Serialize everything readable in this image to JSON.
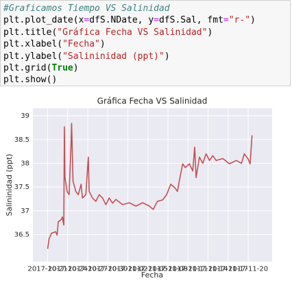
{
  "code": {
    "lines": [
      [
        "#Graficamos Tiempo VS Salinidad"
      ],
      [
        "plt.plot_date(x",
        "=",
        "dfS.NDate, y",
        "=",
        "dfS.Sal, fmt",
        "=",
        "\"r-\"",
        ")"
      ],
      [
        "plt.title(",
        "\"Gráfica Fecha VS Salinidad\"",
        ")"
      ],
      [
        "plt.xlabel(",
        "\"Fecha\"",
        ")"
      ],
      [
        "plt.ylabel(",
        "\"Salininidad (ppt)\"",
        ")"
      ],
      [
        "plt.grid(",
        "True",
        ")"
      ],
      [
        "plt.show()"
      ]
    ]
  },
  "chart_data": {
    "type": "line",
    "title": "Gráfica Fecha VS Salinidad",
    "x_label": "Fecha",
    "y_label": "Salininidad (ppt)",
    "grid": true,
    "xlim": [
      "2017-10-18T19:00",
      "2017-11-23T14:00"
    ],
    "ylim": [
      35.93,
      39.16
    ],
    "xticks": [
      "2017-10-21",
      "2017-10-24",
      "2017-10-27",
      "2017-10-30",
      "2017-11-02",
      "2017-11-05",
      "2017-11-08",
      "2017-11-11",
      "2017-11-14",
      "2017-11-17",
      "2017-11-20"
    ],
    "yticks": [
      36.5,
      37.0,
      37.5,
      38.0,
      38.5,
      39.0
    ],
    "series": [
      {
        "name": "Sal",
        "color": "#c44e52",
        "x": [
          "2017-10-21T00:00",
          "2017-10-21T05:00",
          "2017-10-21T14:00",
          "2017-10-22T05:00",
          "2017-10-22T10:00",
          "2017-10-22T14:00",
          "2017-10-23T00:00",
          "2017-10-23T05:00",
          "2017-10-23T10:00",
          "2017-10-23T12:00",
          "2017-10-23T14:00",
          "2017-10-23T22:00",
          "2017-10-24T05:00",
          "2017-10-24T12:00",
          "2017-10-24T14:00",
          "2017-10-24T19:00",
          "2017-10-25T05:00",
          "2017-10-25T14:00",
          "2017-10-26T00:00",
          "2017-10-26T05:00",
          "2017-10-26T17:00",
          "2017-10-27T02:00",
          "2017-10-27T05:00",
          "2017-10-27T17:00",
          "2017-10-28T05:00",
          "2017-10-28T17:00",
          "2017-10-29T05:00",
          "2017-10-29T17:00",
          "2017-10-30T05:00",
          "2017-10-30T17:00",
          "2017-10-31T05:00",
          "2017-11-01T05:00",
          "2017-11-02T05:00",
          "2017-11-03T05:00",
          "2017-11-04T05:00",
          "2017-11-05T05:00",
          "2017-11-05T19:00",
          "2017-11-06T10:00",
          "2017-11-07T05:00",
          "2017-11-07T19:00",
          "2017-11-08T10:00",
          "2017-11-09T00:00",
          "2017-11-09T10:00",
          "2017-11-09T19:00",
          "2017-11-10T05:00",
          "2017-11-10T14:00",
          "2017-11-11T05:00",
          "2017-11-11T17:00",
          "2017-11-12T00:00",
          "2017-11-12T05:00",
          "2017-11-12T17:00",
          "2017-11-13T05:00",
          "2017-11-13T17:00",
          "2017-11-14T05:00",
          "2017-11-14T17:00",
          "2017-11-15T05:00",
          "2017-11-16T05:00",
          "2017-11-17T05:00",
          "2017-11-18T05:00",
          "2017-11-19T00:00",
          "2017-11-19T10:00",
          "2017-11-20T00:00",
          "2017-11-20T07:00",
          "2017-11-20T14:00"
        ],
        "values": [
          36.2,
          36.41,
          36.53,
          36.56,
          36.49,
          36.77,
          36.81,
          36.87,
          36.7,
          38.77,
          37.7,
          37.41,
          37.34,
          38.41,
          38.84,
          37.63,
          37.41,
          37.34,
          37.56,
          37.27,
          37.34,
          38.13,
          37.41,
          37.27,
          37.2,
          37.34,
          37.27,
          37.13,
          37.27,
          37.16,
          37.24,
          37.13,
          37.17,
          37.1,
          37.17,
          37.1,
          37.03,
          37.2,
          37.23,
          37.34,
          37.56,
          37.49,
          37.41,
          37.7,
          37.99,
          37.91,
          37.99,
          37.84,
          38.34,
          37.7,
          38.13,
          38.0,
          38.2,
          38.06,
          38.16,
          38.06,
          38.1,
          37.99,
          38.06,
          38.0,
          38.2,
          38.09,
          37.99,
          38.59
        ]
      }
    ]
  }
}
